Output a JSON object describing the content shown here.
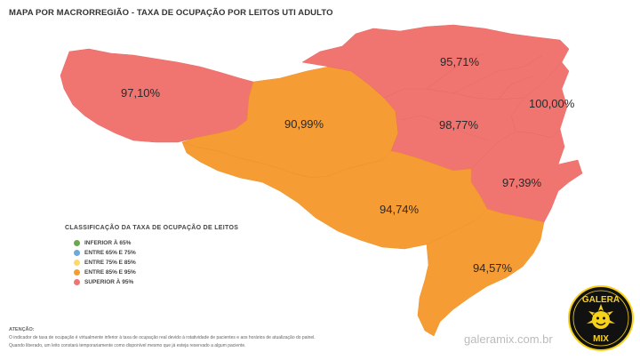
{
  "title": "MAPA POR MACRORREGIÃO - TAXA DE OCUPAÇÃO POR LEITOS UTI ADULTO",
  "regions": [
    {
      "label": "97,10%",
      "category": "superior"
    },
    {
      "label": "90,99%",
      "category": "entre85"
    },
    {
      "label": "95,71%",
      "category": "superior"
    },
    {
      "label": "100,00%",
      "category": "superior"
    },
    {
      "label": "98,77%",
      "category": "superior"
    },
    {
      "label": "97,39%",
      "category": "superior"
    },
    {
      "label": "94,74%",
      "category": "entre85"
    },
    {
      "label": "94,57%",
      "category": "entre85"
    }
  ],
  "legend": {
    "title": "CLASSIFICAÇÃO DA TAXA DE OCUPAÇÃO DE LEITOS",
    "items": [
      {
        "label": "INFERIOR À 65%",
        "color": "#6aa84f"
      },
      {
        "label": "ENTRE 65% E 75%",
        "color": "#6fa8dc"
      },
      {
        "label": "ENTRE 75% E 85%",
        "color": "#ffd966"
      },
      {
        "label": "ENTRE 85% E 95%",
        "color": "#f59c34"
      },
      {
        "label": "SUPERIOR À 95%",
        "color": "#f07470"
      }
    ]
  },
  "notice": {
    "heading": "ATENÇÃO:",
    "line1": "O indicador de taxa de ocupação é virtualmente inferior à taxa de ocupação real devido à rotatividade de pacientes e aos horários de atualização do painel.",
    "line2": "Quando liberado, um leito constará temporariamente como disponível mesmo que já esteja reservado a algum paciente."
  },
  "watermark": "galeramix.com.br",
  "logo": {
    "top": "GALERA",
    "bottom": "MIX"
  },
  "colors": {
    "superior": "#f07470",
    "entre85": "#f59c34"
  }
}
